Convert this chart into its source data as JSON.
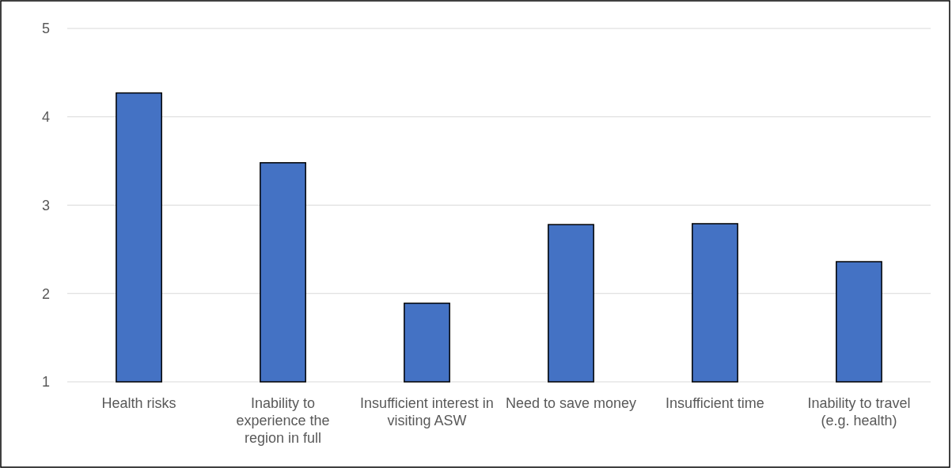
{
  "chart_data": {
    "type": "bar",
    "categories": [
      "Health risks",
      "Inability to experience the region in full",
      "Insufficient interest in visiting ASW",
      "Need to save money",
      "Insufficient time",
      "Inability to travel (e.g. health)"
    ],
    "values": [
      4.27,
      3.48,
      1.89,
      2.78,
      2.79,
      2.36
    ],
    "color": "#4472c4",
    "ylim": [
      1,
      5
    ],
    "yticks": [
      1,
      2,
      3,
      4,
      5
    ],
    "grid": "y"
  }
}
